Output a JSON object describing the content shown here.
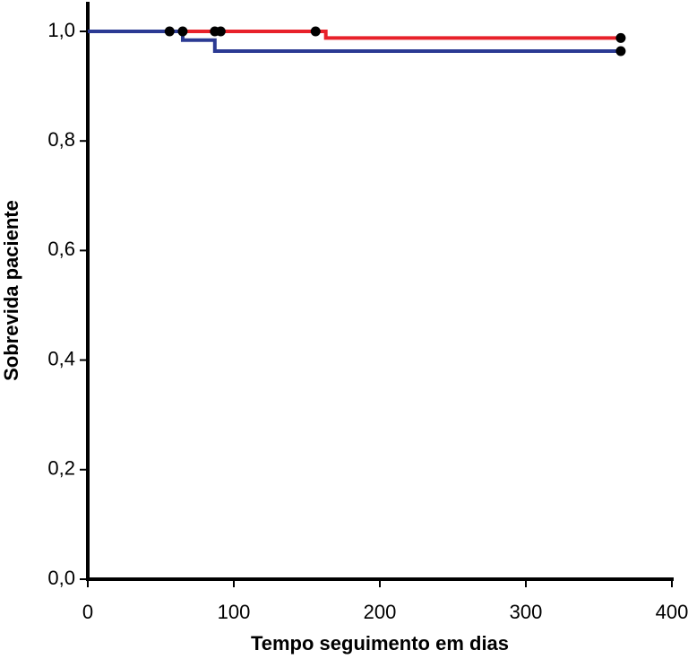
{
  "chart_data": {
    "type": "step",
    "x_label": "Tempo seguimento em dias",
    "y_label": "Sobrevida paciente",
    "xlim": [
      0,
      400
    ],
    "xticks": [
      0,
      100,
      200,
      300,
      400
    ],
    "ylim": [
      0,
      1
    ],
    "yticks": [
      {
        "value": 0,
        "label": "0,0"
      },
      {
        "value": 0.2,
        "label": "0,2"
      },
      {
        "value": 0.4,
        "label": "0,4"
      },
      {
        "value": 0.6,
        "label": "0,6"
      },
      {
        "value": 0.8,
        "label": "0,8"
      },
      {
        "value": 1,
        "label": "1,0"
      }
    ],
    "series": [
      {
        "color": "#e8212a",
        "x": [
          0,
          163,
          365
        ],
        "values": [
          1,
          0.988,
          0.988
        ]
      },
      {
        "color": "#2b3a93",
        "x": [
          0,
          65,
          87,
          365
        ],
        "values": [
          1,
          0.984,
          0.964,
          0.964
        ]
      }
    ],
    "censor_marks": {
      "color": "#000000",
      "x": [
        56,
        65,
        87,
        91,
        156,
        365,
        365
      ],
      "values": [
        1,
        1,
        1,
        1,
        1,
        0.988,
        0.964
      ]
    }
  }
}
